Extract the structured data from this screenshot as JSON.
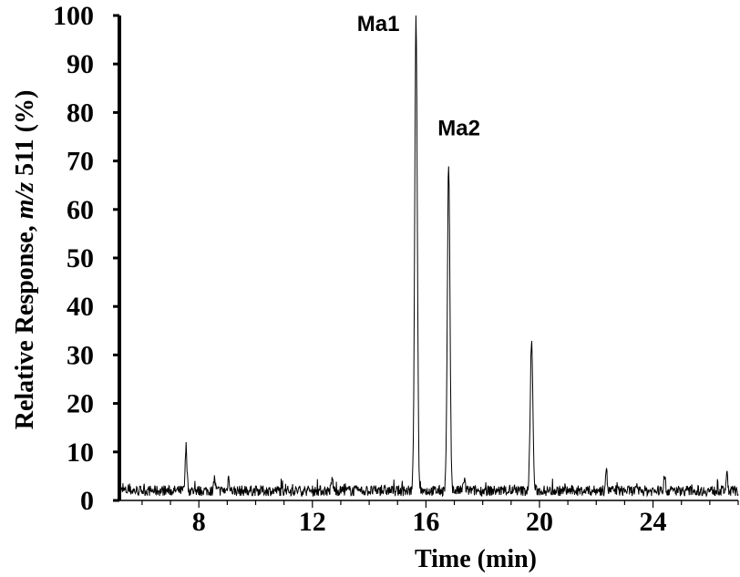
{
  "chart_data": {
    "type": "line",
    "title": "",
    "xlabel": "Time (min)",
    "ylabel_prefix": "Relative Response, ",
    "ylabel_italic": "m/z",
    "ylabel_suffix": " 511 (%)",
    "xlim": [
      5.2,
      27.0
    ],
    "ylim": [
      0,
      100
    ],
    "x_ticks": [
      8,
      12,
      16,
      20,
      24
    ],
    "y_ticks": [
      0,
      10,
      20,
      30,
      40,
      50,
      60,
      70,
      80,
      90,
      100
    ],
    "grid": false,
    "line_color": "#000000",
    "annotations": [
      {
        "text": "Ma1",
        "x": 15.65,
        "y": 100
      },
      {
        "text": "Ma2",
        "x": 16.8,
        "y": 69.3
      }
    ],
    "series": [
      {
        "baseline": 2.0,
        "peaks": [
          {
            "x": 7.55,
            "y": 11.2
          },
          {
            "x": 8.55,
            "y": 4.5
          },
          {
            "x": 9.05,
            "y": 4.8
          },
          {
            "x": 12.7,
            "y": 4.4
          },
          {
            "x": 15.65,
            "y": 100
          },
          {
            "x": 16.8,
            "y": 69.3
          },
          {
            "x": 17.35,
            "y": 4.5
          },
          {
            "x": 19.72,
            "y": 32.8
          },
          {
            "x": 22.35,
            "y": 6.6
          },
          {
            "x": 24.4,
            "y": 4.6
          },
          {
            "x": 26.6,
            "y": 5.2
          }
        ]
      }
    ]
  }
}
